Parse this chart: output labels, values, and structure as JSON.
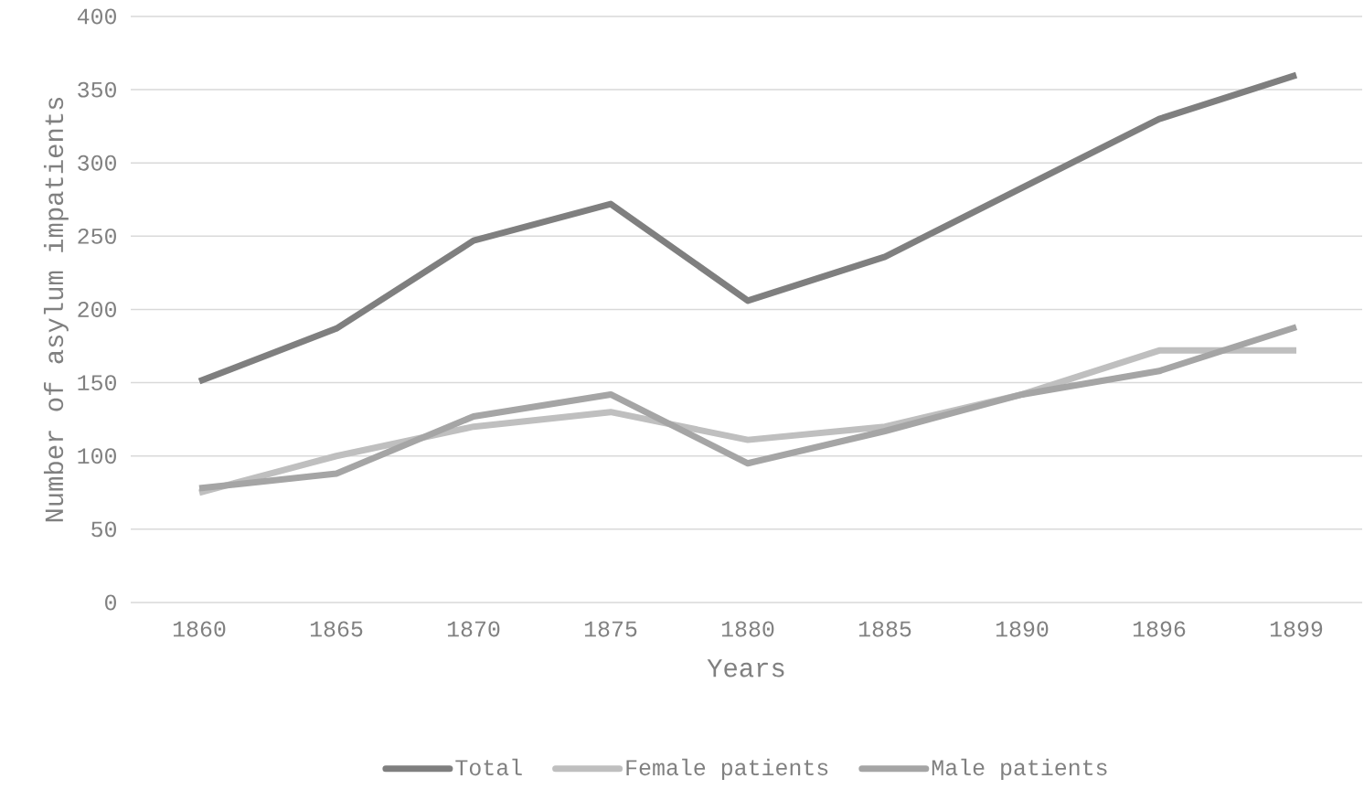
{
  "chart_data": {
    "type": "line",
    "xlabel": "Years",
    "ylabel": "Number of asylum impatients",
    "categories": [
      "1860",
      "1865",
      "1870",
      "1875",
      "1880",
      "1885",
      "1890",
      "1896",
      "1899"
    ],
    "series": [
      {
        "name": "Total",
        "color": "#7f7f7f",
        "values": [
          151,
          187,
          247,
          272,
          206,
          236,
          283,
          330,
          360
        ]
      },
      {
        "name": "Female patients",
        "color": "#bfbfbf",
        "values": [
          75,
          100,
          120,
          130,
          111,
          120,
          142,
          172,
          172
        ]
      },
      {
        "name": "Male patients",
        "color": "#a5a5a5",
        "values": [
          78,
          88,
          127,
          142,
          95,
          117,
          142,
          158,
          188
        ]
      }
    ],
    "ylim": [
      0,
      400
    ],
    "yticks": [
      0,
      50,
      100,
      150,
      200,
      250,
      300,
      350,
      400
    ],
    "grid": "y",
    "legend": "bottom",
    "marker": "none"
  }
}
